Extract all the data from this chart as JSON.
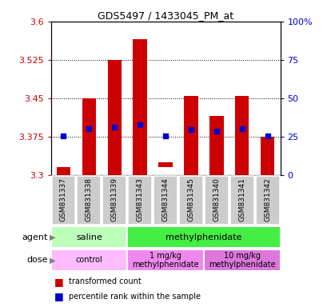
{
  "title": "GDS5497 / 1433045_PM_at",
  "samples": [
    "GSM831337",
    "GSM831338",
    "GSM831339",
    "GSM831343",
    "GSM831344",
    "GSM831345",
    "GSM831340",
    "GSM831341",
    "GSM831342"
  ],
  "bar_bottoms": [
    3.3,
    3.3,
    3.3,
    3.3,
    3.315,
    3.3,
    3.3,
    3.3,
    3.3
  ],
  "bar_tops": [
    3.315,
    3.45,
    3.525,
    3.565,
    3.325,
    3.455,
    3.415,
    3.455,
    3.375
  ],
  "percentile_values": [
    3.376,
    3.391,
    3.393,
    3.399,
    3.376,
    3.389,
    3.386,
    3.39,
    3.376
  ],
  "ylim_left": [
    3.3,
    3.6
  ],
  "ylim_right": [
    0,
    100
  ],
  "yticks_left": [
    3.3,
    3.375,
    3.45,
    3.525,
    3.6
  ],
  "yticks_right": [
    0,
    25,
    50,
    75,
    100
  ],
  "ytick_labels_right": [
    "0",
    "25",
    "50",
    "75",
    "100%"
  ],
  "bar_color": "#cc0000",
  "percentile_color": "#0000cc",
  "agent_groups": [
    {
      "label": "saline",
      "start": 0,
      "end": 3,
      "color": "#bbffbb"
    },
    {
      "label": "methylphenidate",
      "start": 3,
      "end": 9,
      "color": "#44ee44"
    }
  ],
  "dose_groups": [
    {
      "label": "control",
      "start": 0,
      "end": 3,
      "color": "#ffbbff"
    },
    {
      "label": "1 mg/kg\nmethylphenidate",
      "start": 3,
      "end": 6,
      "color": "#ee88ee"
    },
    {
      "label": "10 mg/kg\nmethylphenidate",
      "start": 6,
      "end": 9,
      "color": "#dd77dd"
    }
  ],
  "sample_box_color": "#cccccc",
  "legend_items": [
    {
      "label": "transformed count",
      "color": "#cc0000"
    },
    {
      "label": "percentile rank within the sample",
      "color": "#0000cc"
    }
  ],
  "agent_label": "agent",
  "dose_label": "dose",
  "left_axis_color": "#cc0000",
  "right_axis_color": "#0000cc",
  "bar_width": 0.55
}
